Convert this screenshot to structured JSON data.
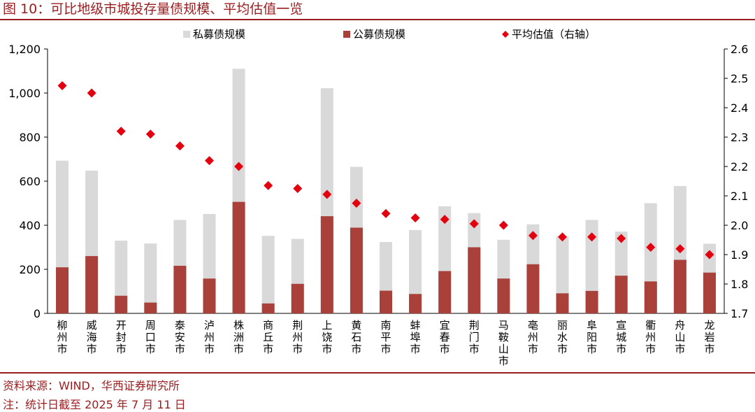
{
  "title": "图 10：可比地级市城投存量债规模、平均估值一览",
  "source": "资料来源：WIND，华西证券研究所",
  "note": "注：统计日截至 2025 年 7 月 11 日",
  "colors": {
    "private": "#d9d9d9",
    "public": "#a9403a",
    "valuation": "#e3000f",
    "accent": "#9b1c1f"
  },
  "chart_data": {
    "type": "bar",
    "categories": [
      "柳州市",
      "威海市",
      "开封市",
      "周口市",
      "泰安市",
      "泸州市",
      "株洲市",
      "商丘市",
      "荆州市",
      "上饶市",
      "黄石市",
      "南平市",
      "蚌埠市",
      "宜春市",
      "荆门市",
      "马鞍山市",
      "亳州市",
      "丽水市",
      "阜阳市",
      "宣城市",
      "衢州市",
      "舟山市",
      "龙岩市"
    ],
    "series": [
      {
        "name": "私募债规模",
        "kind": "bar-total",
        "axis": "left",
        "values": [
          693,
          648,
          330,
          317,
          424,
          451,
          1110,
          352,
          338,
          1022,
          665,
          324,
          378,
          486,
          455,
          334,
          404,
          349,
          424,
          371,
          500,
          578,
          316
        ]
      },
      {
        "name": "公募债规模",
        "kind": "bar",
        "axis": "left",
        "values": [
          209,
          260,
          80,
          49,
          216,
          158,
          506,
          45,
          134,
          441,
          389,
          103,
          88,
          192,
          300,
          158,
          223,
          91,
          102,
          171,
          145,
          243,
          185
        ]
      },
      {
        "name": "平均估值（右轴）",
        "kind": "marker",
        "axis": "right",
        "values": [
          2.475,
          2.45,
          2.32,
          2.31,
          2.27,
          2.22,
          2.2,
          2.135,
          2.125,
          2.105,
          2.075,
          2.04,
          2.025,
          2.02,
          2.005,
          2.0,
          1.965,
          1.96,
          1.96,
          1.955,
          1.925,
          1.92,
          1.9
        ]
      }
    ],
    "y_left": {
      "min": 0,
      "max": 1200,
      "ticks": [
        0,
        200,
        400,
        600,
        800,
        1000,
        1200
      ],
      "tick_labels": [
        "0",
        "200",
        "400",
        "600",
        "800",
        "1,000",
        "1,200"
      ]
    },
    "y_right": {
      "min": 1.7,
      "max": 2.6,
      "ticks": [
        1.7,
        1.8,
        1.9,
        2.0,
        2.1,
        2.2,
        2.3,
        2.4,
        2.5,
        2.6
      ],
      "tick_labels": [
        "1.7",
        "1.8",
        "1.9",
        "2.0",
        "2.1",
        "2.2",
        "2.3",
        "2.4",
        "2.5",
        "2.6"
      ]
    },
    "legend": "top"
  }
}
